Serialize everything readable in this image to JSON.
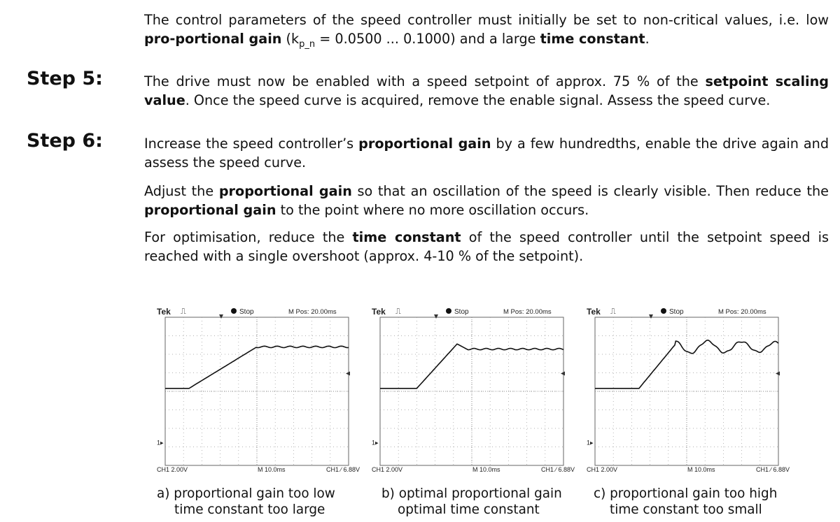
{
  "intro": {
    "t1": "The control parameters of the speed controller must initially be set to non-critical values, i.e. low ",
    "b1": "pro-portional gain",
    "t2": " (k",
    "sub": "p_n",
    "t3": " = 0.0500 ... 0.1000) and a large ",
    "b2": "time constant",
    "t4": "."
  },
  "steps": [
    {
      "label": "Step 5:",
      "p1": {
        "t1": "The drive must now be enabled with a speed setpoint of approx. 75 % of the ",
        "b1": "setpoint scaling value",
        "t2": ". Once the speed curve is acquired, remove the enable signal. Assess the speed curve."
      }
    },
    {
      "label": "Step 6:",
      "p1": {
        "t1": "Increase the speed controller’s ",
        "b1": "proportional gain",
        "t2": " by a few hundredths, enable the drive again and assess the speed curve."
      },
      "p2": {
        "t1": "Adjust the ",
        "b1": "proportional gain",
        "t2": " so that an oscillation of the speed is clearly visible. Then reduce the ",
        "b2": "proportional gain",
        "t3": " to the point where no more oscillation occurs."
      },
      "p3": {
        "t1": "For optimisation, reduce the ",
        "b1": "time constant",
        "t2": " of the speed controller until the setpoint speed is reached with a single overshoot (approx. 4-10 % of the setpoint)."
      }
    }
  ],
  "scope_labels": {
    "brand": "Tek",
    "trig_symbol": "⎍",
    "run": "Stop",
    "mpos": "M Pos: 20.00ms",
    "ch_scale": "CH1  2.00V",
    "time_scale": "M 10.0ms",
    "trig_level": "CH1 ∕ 6.88V",
    "ch_marker": "1▸"
  },
  "scopes": [
    {
      "caption_line1": "a) proportional gain too low",
      "caption_line2": "time constant too large"
    },
    {
      "caption_line1": "b) optimal proportional gain",
      "caption_line2": "optimal time constant"
    },
    {
      "caption_line1": "c) proportional gain too high",
      "caption_line2": "time constant too small"
    }
  ]
}
